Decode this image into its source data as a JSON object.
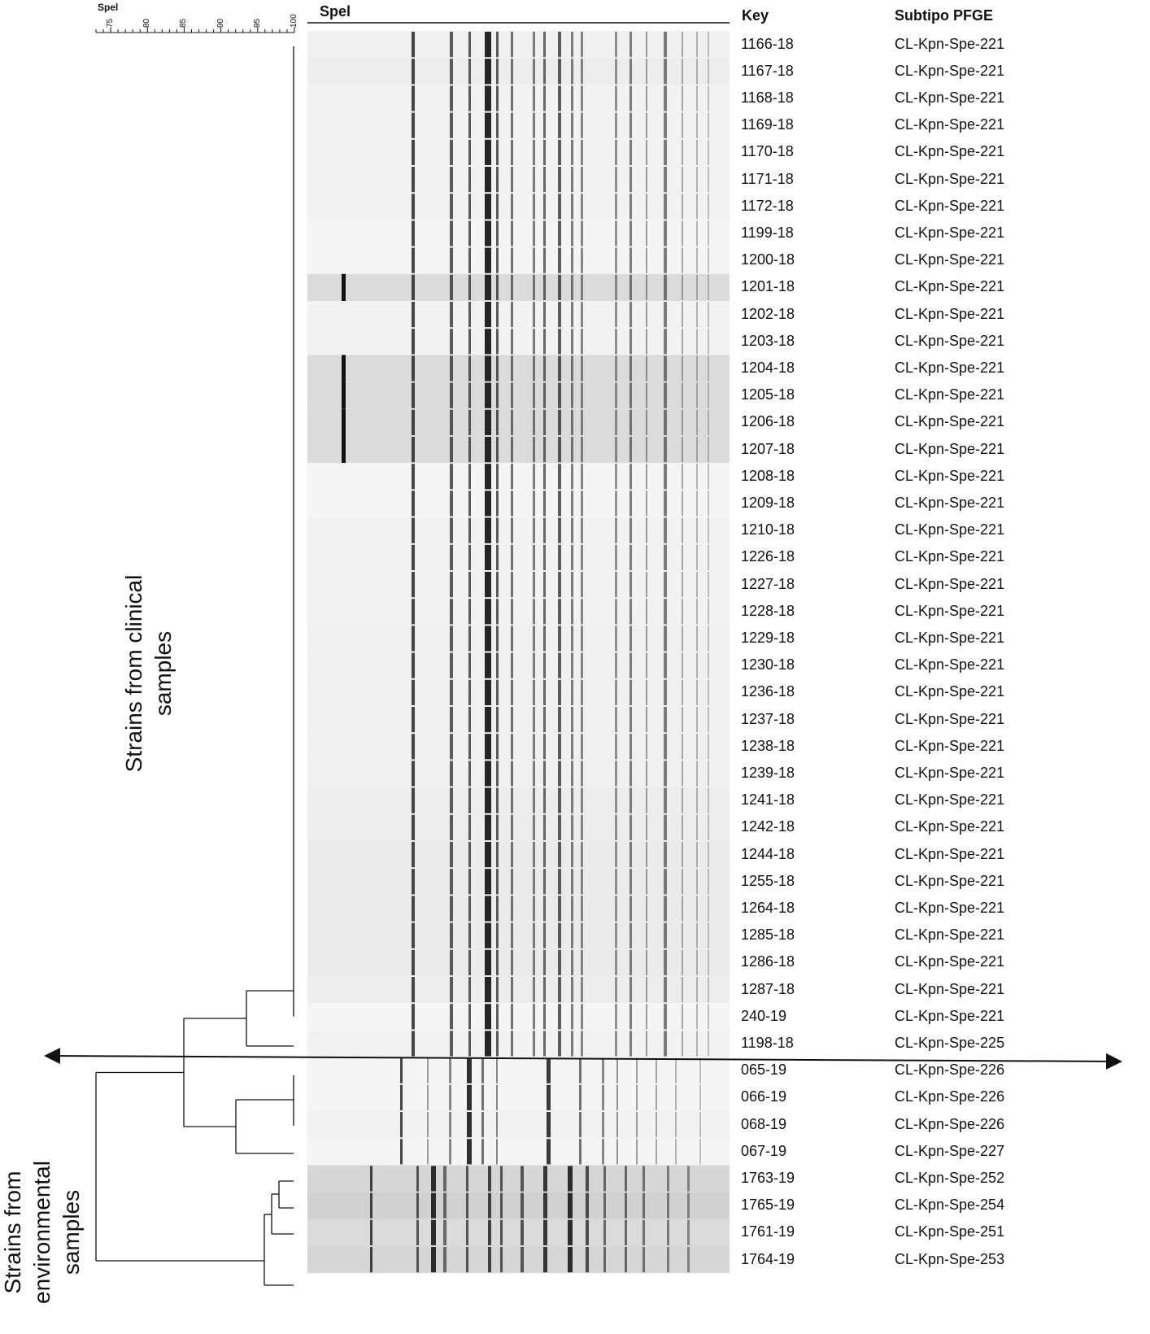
{
  "scale": {
    "title": "Spel",
    "ticks": [
      "75",
      "80",
      "85",
      "90",
      "95",
      "100"
    ]
  },
  "headers": {
    "gel": "Spel",
    "key": "Key",
    "subtype": "Subtipo PFGE"
  },
  "group_labels": {
    "clinical": [
      "Strains from clinical",
      "samples"
    ],
    "environmental": [
      "Strains from",
      "environmental",
      "samples"
    ]
  },
  "rows": [
    {
      "key": "1166-18",
      "subtype": "CL-Kpn-Spe-221",
      "tone": 0.94
    },
    {
      "key": "1167-18",
      "subtype": "CL-Kpn-Spe-221",
      "tone": 0.93
    },
    {
      "key": "1168-18",
      "subtype": "CL-Kpn-Spe-221",
      "tone": 0.95
    },
    {
      "key": "1169-18",
      "subtype": "CL-Kpn-Spe-221",
      "tone": 0.95
    },
    {
      "key": "1170-18",
      "subtype": "CL-Kpn-Spe-221",
      "tone": 0.95
    },
    {
      "key": "1171-18",
      "subtype": "CL-Kpn-Spe-221",
      "tone": 0.95
    },
    {
      "key": "1172-18",
      "subtype": "CL-Kpn-Spe-221",
      "tone": 0.95
    },
    {
      "key": "1199-18",
      "subtype": "CL-Kpn-Spe-221",
      "tone": 0.96
    },
    {
      "key": "1200-18",
      "subtype": "CL-Kpn-Spe-221",
      "tone": 0.96
    },
    {
      "key": "1201-18",
      "subtype": "CL-Kpn-Spe-221",
      "tone": 0.86
    },
    {
      "key": "1202-18",
      "subtype": "CL-Kpn-Spe-221",
      "tone": 0.95
    },
    {
      "key": "1203-18",
      "subtype": "CL-Kpn-Spe-221",
      "tone": 0.95
    },
    {
      "key": "1204-18",
      "subtype": "CL-Kpn-Spe-221",
      "tone": 0.86
    },
    {
      "key": "1205-18",
      "subtype": "CL-Kpn-Spe-221",
      "tone": 0.86
    },
    {
      "key": "1206-18",
      "subtype": "CL-Kpn-Spe-221",
      "tone": 0.86
    },
    {
      "key": "1207-18",
      "subtype": "CL-Kpn-Spe-221",
      "tone": 0.86
    },
    {
      "key": "1208-18",
      "subtype": "CL-Kpn-Spe-221",
      "tone": 0.96
    },
    {
      "key": "1209-18",
      "subtype": "CL-Kpn-Spe-221",
      "tone": 0.96
    },
    {
      "key": "1210-18",
      "subtype": "CL-Kpn-Spe-221",
      "tone": 0.95
    },
    {
      "key": "1226-18",
      "subtype": "CL-Kpn-Spe-221",
      "tone": 0.95
    },
    {
      "key": "1227-18",
      "subtype": "CL-Kpn-Spe-221",
      "tone": 0.95
    },
    {
      "key": "1228-18",
      "subtype": "CL-Kpn-Spe-221",
      "tone": 0.95
    },
    {
      "key": "1229-18",
      "subtype": "CL-Kpn-Spe-221",
      "tone": 0.94
    },
    {
      "key": "1230-18",
      "subtype": "CL-Kpn-Spe-221",
      "tone": 0.94
    },
    {
      "key": "1236-18",
      "subtype": "CL-Kpn-Spe-221",
      "tone": 0.94
    },
    {
      "key": "1237-18",
      "subtype": "CL-Kpn-Spe-221",
      "tone": 0.94
    },
    {
      "key": "1238-18",
      "subtype": "CL-Kpn-Spe-221",
      "tone": 0.94
    },
    {
      "key": "1239-18",
      "subtype": "CL-Kpn-Spe-221",
      "tone": 0.94
    },
    {
      "key": "1241-18",
      "subtype": "CL-Kpn-Spe-221",
      "tone": 0.93
    },
    {
      "key": "1242-18",
      "subtype": "CL-Kpn-Spe-221",
      "tone": 0.93
    },
    {
      "key": "1244-18",
      "subtype": "CL-Kpn-Spe-221",
      "tone": 0.92
    },
    {
      "key": "1255-18",
      "subtype": "CL-Kpn-Spe-221",
      "tone": 0.92
    },
    {
      "key": "1264-18",
      "subtype": "CL-Kpn-Spe-221",
      "tone": 0.92
    },
    {
      "key": "1285-18",
      "subtype": "CL-Kpn-Spe-221",
      "tone": 0.92
    },
    {
      "key": "1286-18",
      "subtype": "CL-Kpn-Spe-221",
      "tone": 0.92
    },
    {
      "key": "1287-18",
      "subtype": "CL-Kpn-Spe-221",
      "tone": 0.93
    },
    {
      "key": "240-19",
      "subtype": "CL-Kpn-Spe-221",
      "tone": 0.96
    },
    {
      "key": "1198-18",
      "subtype": "CL-Kpn-Spe-225",
      "tone": 0.95
    },
    {
      "key": "065-19",
      "subtype": "CL-Kpn-Spe-226",
      "tone": 0.96
    },
    {
      "key": "066-19",
      "subtype": "CL-Kpn-Spe-226",
      "tone": 0.96
    },
    {
      "key": "068-19",
      "subtype": "CL-Kpn-Spe-226",
      "tone": 0.95
    },
    {
      "key": "067-19",
      "subtype": "CL-Kpn-Spe-227",
      "tone": 0.96
    },
    {
      "key": "1763-19",
      "subtype": "CL-Kpn-Spe-252",
      "tone": 0.84
    },
    {
      "key": "1765-19",
      "subtype": "CL-Kpn-Spe-254",
      "tone": 0.82
    },
    {
      "key": "1761-19",
      "subtype": "CL-Kpn-Spe-251",
      "tone": 0.86
    },
    {
      "key": "1764-19",
      "subtype": "CL-Kpn-Spe-253",
      "tone": 0.84
    }
  ]
}
